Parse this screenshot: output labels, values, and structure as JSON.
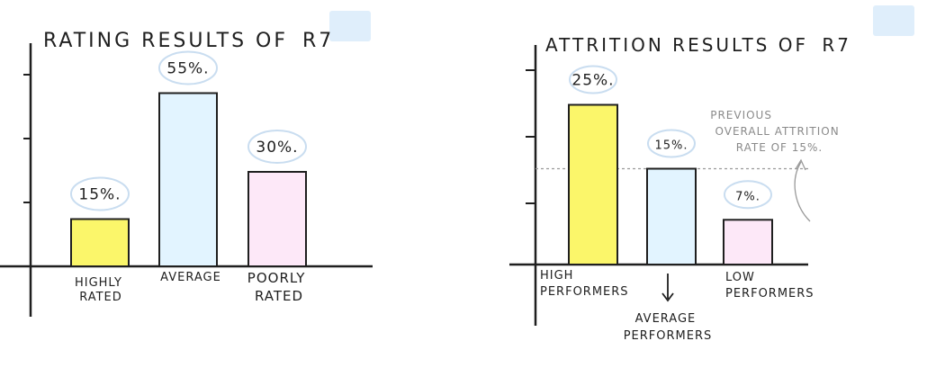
{
  "chart_data": [
    {
      "type": "bar",
      "title_prefix": "RATING RESULTS OF",
      "title_highlight": "R7",
      "categories": [
        {
          "line1": "HIGHLY",
          "line2": "RATED"
        },
        {
          "line1": "AVERAGE",
          "line2": ""
        },
        {
          "line1": "POORLY",
          "line2": "RATED"
        }
      ],
      "values": [
        15,
        55,
        30
      ],
      "data_labels": [
        "15%.",
        "55%.",
        "30%."
      ],
      "colors": [
        "#fbf66a",
        "#e2f4ff",
        "#fde8f8"
      ],
      "xlabel": "",
      "ylabel": "",
      "ylim": [
        0,
        80
      ],
      "grid": false
    },
    {
      "type": "bar",
      "title_prefix": "ATTRITION RESULTS OF",
      "title_highlight": "R7",
      "categories": [
        {
          "line1": "HIGH",
          "line2": "PERFORMERS"
        },
        {
          "line1": "AVERAGE",
          "line2": "PERFORMERS"
        },
        {
          "line1": "LOW",
          "line2": "PERFORMERS"
        }
      ],
      "values": [
        25,
        15,
        7
      ],
      "data_labels": [
        "25%.",
        "15%.",
        "7%."
      ],
      "colors": [
        "#fbf66a",
        "#e2f4ff",
        "#fde8f8"
      ],
      "xlabel": "",
      "ylabel": "",
      "ylim": [
        0,
        40
      ],
      "grid": false,
      "reference_line": {
        "value": 15,
        "annotation": [
          "PREVIOUS",
          "OVERALL ATTRITION",
          "RATE OF 15%."
        ]
      }
    }
  ]
}
